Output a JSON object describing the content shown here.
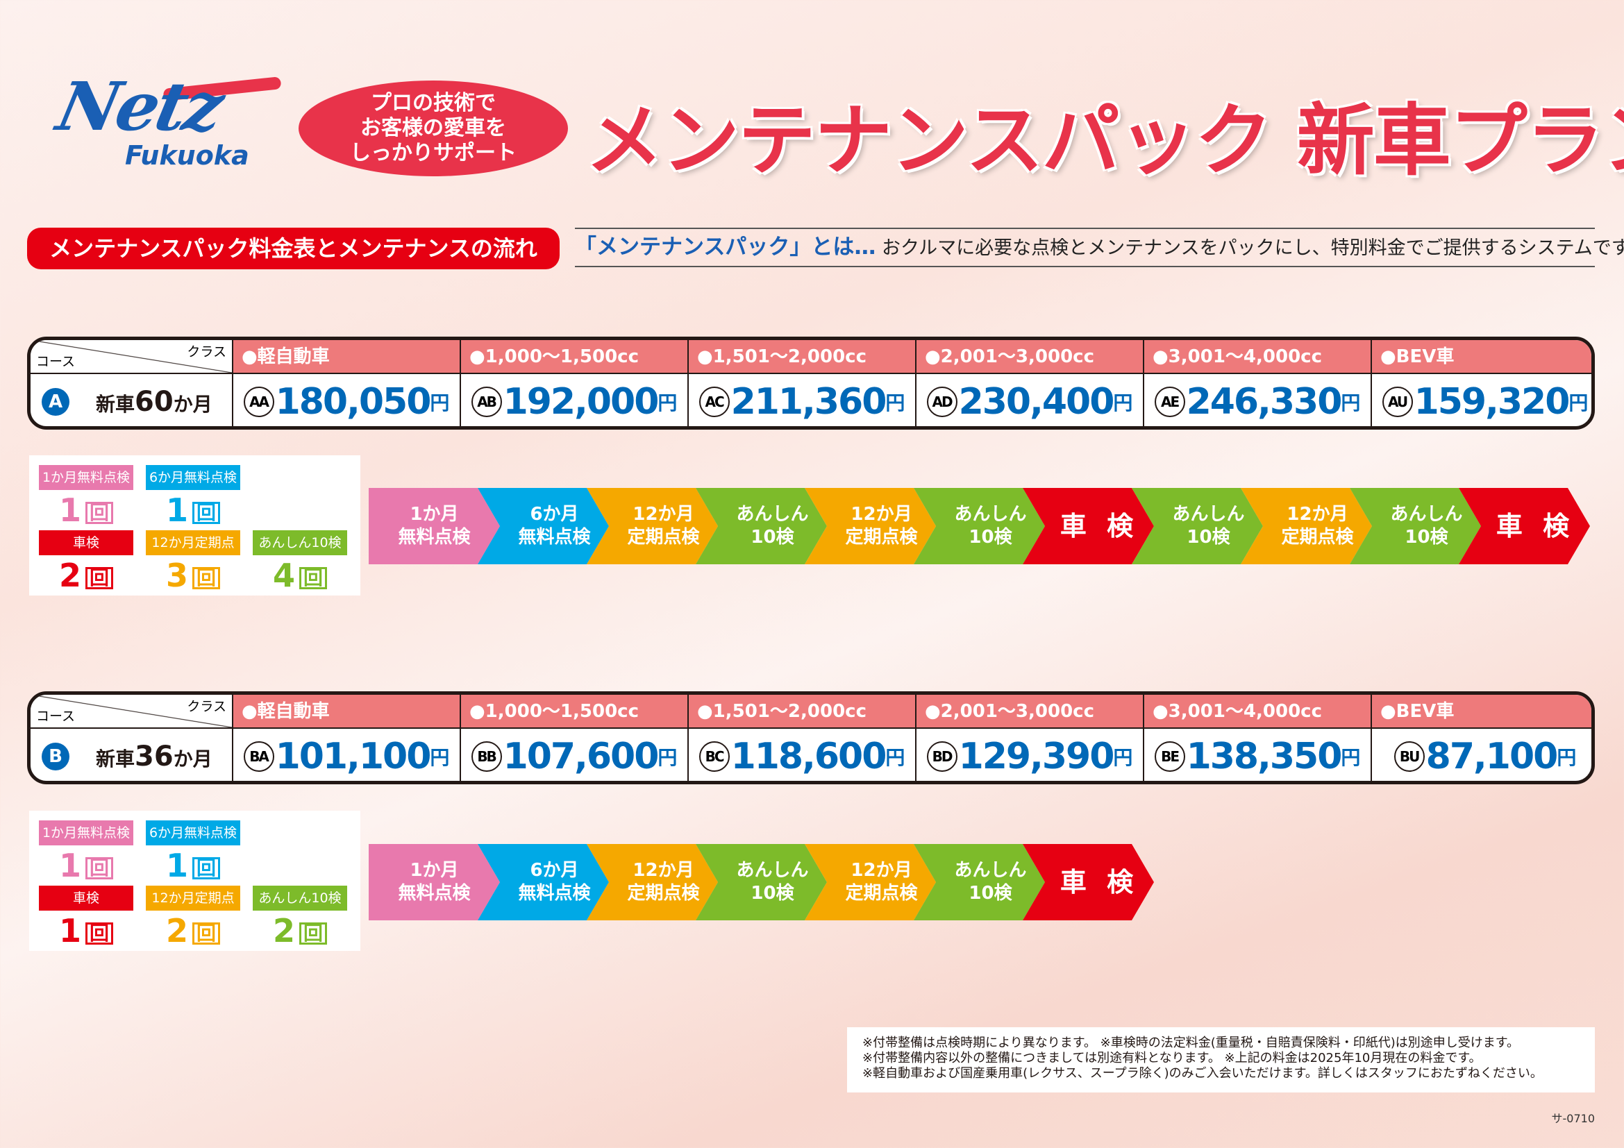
{
  "logo": {
    "brand": "Netz",
    "region": "Fukuoka"
  },
  "bubble": [
    "プロの技術で",
    "お客様の愛車を",
    "しっかりサポート"
  ],
  "title": "メンテナンスパック 新車プラン",
  "section_label": "メンテナンスパック料金表とメンテナンスの流れ",
  "definition": {
    "term": "「メンテナンスパック」とは…",
    "text": " おクルマに必要な点検とメンテナンスをパックにし、特別料金でご提供するシステムです。"
  },
  "table_header": {
    "course": "コース",
    "class": "クラス",
    "classes": [
      "●軽自動車",
      "●1,000～1,500cc",
      "●1,501～2,000cc",
      "●2,001～3,000cc",
      "●3,001～4,000cc",
      "●BEV車"
    ]
  },
  "colors": {
    "pink": "#e879ad",
    "cyan": "#00a9e6",
    "orange": "#f5a800",
    "green": "#7dbb2a",
    "red": "#e60012",
    "blue": "#0068b7",
    "header": "#ee7a7b"
  },
  "plans": [
    {
      "badge": "A",
      "name_pre": "新車",
      "name_num": "60",
      "name_post": "か月",
      "prices": [
        {
          "code": "AA",
          "price": "180,050"
        },
        {
          "code": "AB",
          "price": "192,000"
        },
        {
          "code": "AC",
          "price": "211,360"
        },
        {
          "code": "AD",
          "price": "230,400"
        },
        {
          "code": "AE",
          "price": "246,330"
        },
        {
          "code": "AU",
          "price": "159,320"
        }
      ],
      "summary": [
        {
          "label": "1か月無料点検",
          "count": "1",
          "color": "pink"
        },
        {
          "label": "6か月無料点検",
          "count": "1",
          "color": "cyan"
        },
        {
          "label": "車検",
          "count": "2",
          "color": "red"
        },
        {
          "label": "12か月定期点検",
          "count": "3",
          "color": "orange"
        },
        {
          "label": "あんしん10検",
          "count": "4",
          "color": "green"
        }
      ],
      "flow": [
        [
          "1か月",
          "無料点検",
          "pink"
        ],
        [
          "6か月",
          "無料点検",
          "cyan"
        ],
        [
          "12か月",
          "定期点検",
          "orange"
        ],
        [
          "あんしん",
          "10検",
          "green"
        ],
        [
          "12か月",
          "定期点検",
          "orange"
        ],
        [
          "あんしん",
          "10検",
          "green"
        ],
        [
          "車 検",
          "",
          "red"
        ],
        [
          "あんしん",
          "10検",
          "green"
        ],
        [
          "12か月",
          "定期点検",
          "orange"
        ],
        [
          "あんしん",
          "10検",
          "green"
        ],
        [
          "車 検",
          "",
          "red"
        ]
      ]
    },
    {
      "badge": "B",
      "name_pre": "新車",
      "name_num": "36",
      "name_post": "か月",
      "prices": [
        {
          "code": "BA",
          "price": "101,100"
        },
        {
          "code": "BB",
          "price": "107,600"
        },
        {
          "code": "BC",
          "price": "118,600"
        },
        {
          "code": "BD",
          "price": "129,390"
        },
        {
          "code": "BE",
          "price": "138,350"
        },
        {
          "code": "BU",
          "price": "87,100"
        }
      ],
      "summary": [
        {
          "label": "1か月無料点検",
          "count": "1",
          "color": "pink"
        },
        {
          "label": "6か月無料点検",
          "count": "1",
          "color": "cyan"
        },
        {
          "label": "車検",
          "count": "1",
          "color": "red"
        },
        {
          "label": "12か月定期点検",
          "count": "2",
          "color": "orange"
        },
        {
          "label": "あんしん10検",
          "count": "2",
          "color": "green"
        }
      ],
      "flow": [
        [
          "1か月",
          "無料点検",
          "pink"
        ],
        [
          "6か月",
          "無料点検",
          "cyan"
        ],
        [
          "12か月",
          "定期点検",
          "orange"
        ],
        [
          "あんしん",
          "10検",
          "green"
        ],
        [
          "12か月",
          "定期点検",
          "orange"
        ],
        [
          "あんしん",
          "10検",
          "green"
        ],
        [
          "車 検",
          "",
          "red"
        ]
      ]
    }
  ],
  "yen": "円",
  "count_unit": "回",
  "notes": [
    "※付帯整備は点検時期により異なります。 ※車検時の法定料金(重量税・自賠責保険料・印紙代)は別途申し受けます。",
    "※付帯整備内容以外の整備につきましては別途有料となります。 ※上記の料金は2025年10月現在の料金です。",
    "※軽自動車および国産乗用車(レクサス、スープラ除く)のみご入会いただけます。詳しくはスタッフにおたずねください。"
  ],
  "doc_code": "サ-0710"
}
